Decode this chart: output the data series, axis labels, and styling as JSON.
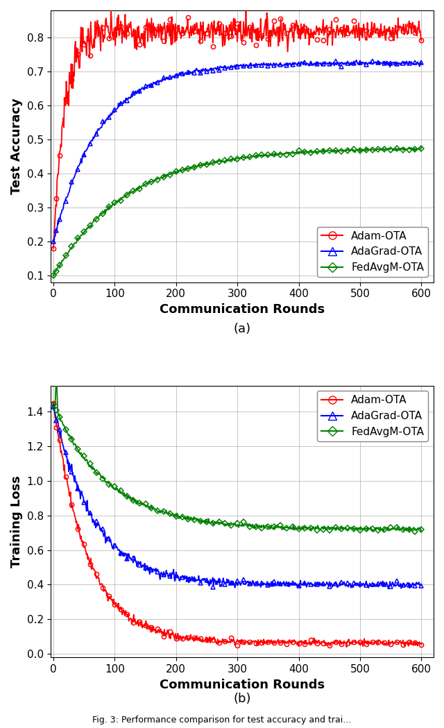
{
  "title_a": "(a)",
  "title_b": "(b)",
  "xlabel": "Communication Rounds",
  "ylabel_a": "Test Accuracy",
  "ylabel_b": "Training Loss",
  "fig_caption": "Fig. 3: Performance comparison for test accuracy and trai...",
  "acc_ylim": [
    0.08,
    0.88
  ],
  "loss_ylim": [
    -0.02,
    1.55
  ],
  "acc_yticks": [
    0.1,
    0.2,
    0.3,
    0.4,
    0.5,
    0.6,
    0.7,
    0.8
  ],
  "loss_yticks": [
    0.0,
    0.2,
    0.4,
    0.6,
    0.8,
    1.0,
    1.2,
    1.4
  ],
  "xticks": [
    0,
    100,
    200,
    300,
    400,
    500,
    600
  ],
  "colors_acc": [
    "red",
    "blue",
    "green"
  ],
  "colors_loss": [
    "red",
    "blue",
    "green"
  ],
  "legend_labels": [
    "Adam-OTA",
    "AdaGrad-OTA",
    "FedAvgM-OTA"
  ],
  "markers": [
    "o",
    "^",
    "D"
  ]
}
